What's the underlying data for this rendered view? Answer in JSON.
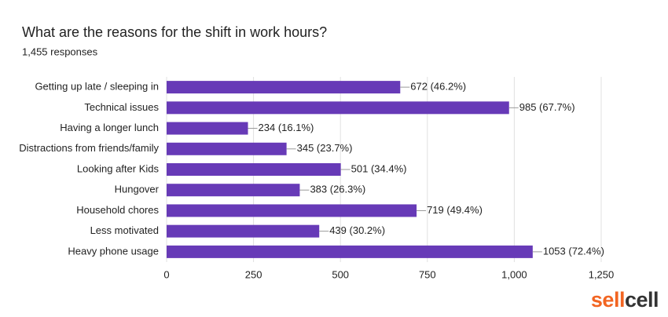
{
  "chart_data": {
    "type": "hbar",
    "title": "What are the reasons for the shift in work hours?",
    "subtitle": "1,455 responses",
    "categories": [
      "Getting up late / sleeping in",
      "Technical issues",
      "Having a longer lunch",
      "Distractions from friends/family",
      "Looking after Kids",
      "Hungover",
      "Household chores",
      "Less motivated",
      "Heavy phone usage"
    ],
    "values": [
      672,
      985,
      234,
      345,
      501,
      383,
      719,
      439,
      1053
    ],
    "value_labels": [
      "672 (46.2%)",
      "985 (67.7%)",
      "234 (16.1%)",
      "345 (23.7%)",
      "501 (34.4%)",
      "383 (26.3%)",
      "719 (49.4%)",
      "439 (30.2%)",
      "1053 (72.4%)"
    ],
    "color": "#673ab7",
    "xlim": [
      0,
      1250
    ],
    "xticks": [
      0,
      250,
      500,
      750,
      {
        "value": 1000,
        "label": "1,000"
      },
      {
        "value": 1250,
        "label": "1,250"
      }
    ],
    "grid": true
  },
  "brand": [
    "sell",
    "cell"
  ]
}
